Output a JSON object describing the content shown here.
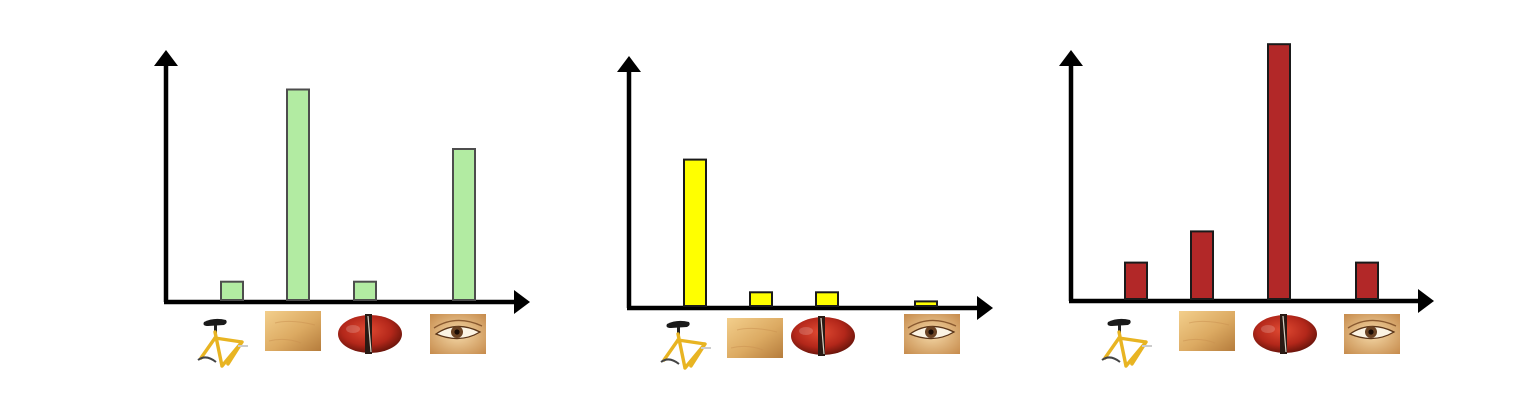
{
  "colors": {
    "background": "#ffffff",
    "axis": "#000000",
    "bar_border_light": "#4d4d4d",
    "bar_border_dark": "#1a1a1a"
  },
  "category_icons": [
    "bicycle-icon",
    "skin-texture-icon",
    "violin-icon",
    "eye-icon"
  ],
  "chart_data": [
    {
      "type": "bar",
      "categories": [
        "",
        "",
        "",
        ""
      ],
      "values": [
        2,
        23,
        2,
        16.5
      ],
      "ylim": [
        0,
        25
      ],
      "color": "#b2eba2",
      "title": "",
      "xlabel": "",
      "ylabel": "",
      "grid": false
    },
    {
      "type": "bar",
      "categories": [
        "",
        "",
        "",
        ""
      ],
      "values": [
        16,
        1.5,
        1.5,
        0.5
      ],
      "ylim": [
        0,
        25
      ],
      "color": "#ffff00",
      "title": "",
      "xlabel": "",
      "ylabel": "",
      "grid": false
    },
    {
      "type": "bar",
      "categories": [
        "",
        "",
        "",
        ""
      ],
      "values": [
        3.5,
        6.5,
        24.5,
        3.5
      ],
      "ylim": [
        0,
        25
      ],
      "color": "#b22828",
      "title": "",
      "xlabel": "",
      "ylabel": "",
      "grid": false
    }
  ]
}
